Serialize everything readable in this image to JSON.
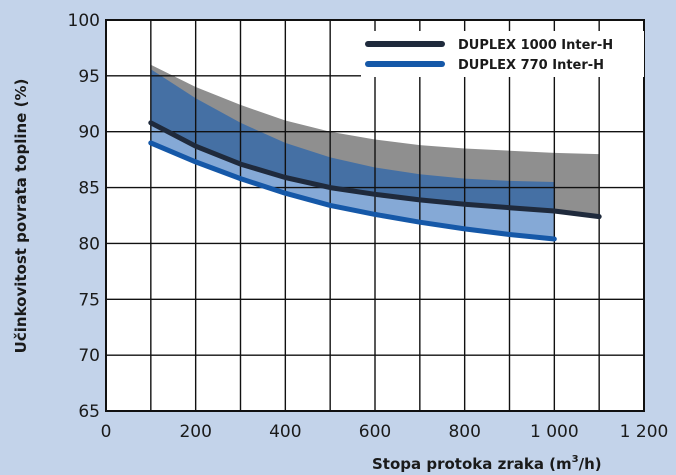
{
  "chart_data": {
    "type": "line",
    "xlabel": "Stopa protoka zraka (m",
    "xlabel_sup": "3",
    "xlabel_end": "/h)",
    "ylabel": "Učinkovitost povrata topline (%)",
    "xlim": [
      0,
      1200
    ],
    "ylim": [
      65,
      100
    ],
    "x_ticks": [
      {
        "value": 0,
        "label": "0"
      },
      {
        "value": 200,
        "label": "200"
      },
      {
        "value": 400,
        "label": "400"
      },
      {
        "value": 600,
        "label": "600"
      },
      {
        "value": 800,
        "label": "800"
      },
      {
        "value": 1000,
        "label": "1 000"
      },
      {
        "value": 1200,
        "label": "1 200"
      }
    ],
    "y_ticks": [
      {
        "value": 65,
        "label": "65"
      },
      {
        "value": 70,
        "label": "70"
      },
      {
        "value": 75,
        "label": "75"
      },
      {
        "value": 80,
        "label": "80"
      },
      {
        "value": 85,
        "label": "85"
      },
      {
        "value": 90,
        "label": "90"
      },
      {
        "value": 95,
        "label": "95"
      },
      {
        "value": 100,
        "label": "100"
      }
    ],
    "grid": true,
    "legend_position": "top-right",
    "series": [
      {
        "name": "DUPLEX 1000 Inter-H",
        "color": "#1f2a3c",
        "band_color": "#8f8f8f",
        "x": [
          100,
          200,
          300,
          400,
          500,
          600,
          700,
          800,
          900,
          1000,
          1100
        ],
        "y": [
          90.8,
          88.7,
          87.1,
          85.9,
          85.0,
          84.4,
          83.9,
          83.5,
          83.2,
          82.9,
          82.4
        ],
        "band_upper": [
          96.0,
          94.0,
          92.4,
          91.0,
          90.0,
          89.3,
          88.8,
          88.5,
          88.3,
          88.1,
          88.0
        ],
        "band_lower": [
          90.8,
          88.7,
          87.1,
          85.9,
          85.0,
          84.4,
          83.9,
          83.5,
          83.2,
          82.9,
          82.4
        ]
      },
      {
        "name": "DUPLEX 770 Inter-H",
        "color": "#1558a8",
        "band_color": "#3f6ea6",
        "band_light_color": "#85a9d6",
        "x": [
          100,
          200,
          300,
          400,
          500,
          600,
          700,
          800,
          900,
          1000
        ],
        "y": [
          89.0,
          87.3,
          85.8,
          84.5,
          83.4,
          82.6,
          81.9,
          81.3,
          80.8,
          80.4
        ],
        "band_upper": [
          95.6,
          93.0,
          90.8,
          89.0,
          87.7,
          86.8,
          86.2,
          85.8,
          85.6,
          85.5
        ]
      }
    ]
  }
}
